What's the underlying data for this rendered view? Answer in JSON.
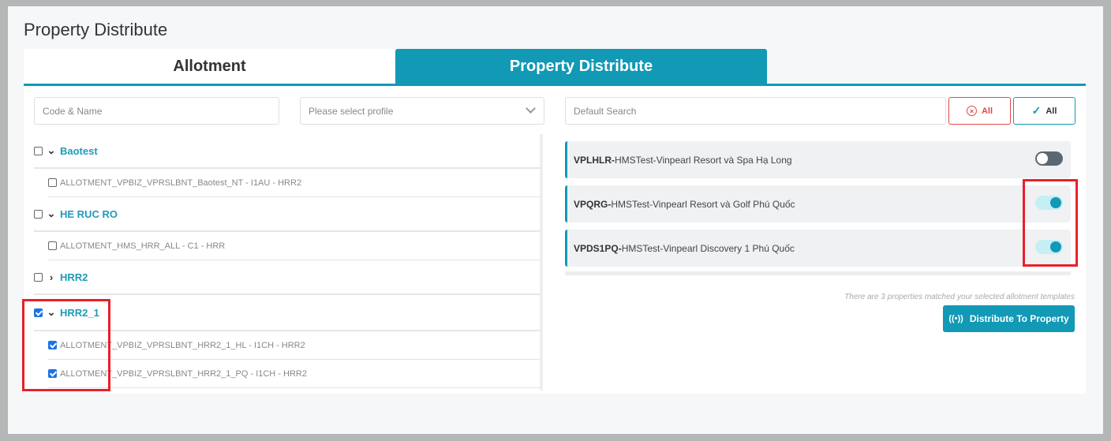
{
  "page_title": "Property Distribute",
  "tabs": [
    {
      "label": "Allotment",
      "active": false
    },
    {
      "label": "Property Distribute",
      "active": true
    }
  ],
  "left": {
    "code_placeholder": "Code & Name",
    "profile_placeholder": "Please select profile",
    "groups": [
      {
        "name": "Baotest",
        "checked": false,
        "expanded": true,
        "items": [
          {
            "label": "ALLOTMENT_VPBIZ_VPRSLBNT_Baotest_NT - I1AU - HRR2",
            "checked": false
          }
        ]
      },
      {
        "name": "HE RUC RO",
        "checked": false,
        "expanded": true,
        "items": [
          {
            "label": "ALLOTMENT_HMS_HRR_ALL - C1 - HRR",
            "checked": false
          }
        ]
      },
      {
        "name": "HRR2",
        "checked": false,
        "expanded": false,
        "items": []
      },
      {
        "name": "HRR2_1",
        "checked": true,
        "expanded": true,
        "items": [
          {
            "label": "ALLOTMENT_VPBIZ_VPRSLBNT_HRR2_1_HL - I1CH - HRR2",
            "checked": true
          },
          {
            "label": "ALLOTMENT_VPBIZ_VPRSLBNT_HRR2_1_PQ - I1CH - HRR2",
            "checked": true
          }
        ]
      }
    ]
  },
  "right": {
    "search_placeholder": "Default Search",
    "deselect_all_label": "All",
    "select_all_label": "All",
    "properties": [
      {
        "code": "VPLHLR-",
        "name": " HMSTest-Vinpearl Resort và Spa Hạ Long",
        "enabled": false
      },
      {
        "code": "VPQRG-",
        "name": " HMSTest-Vinpearl Resort và Golf Phú Quốc",
        "enabled": true
      },
      {
        "code": "VPDS1PQ-",
        "name": " HMSTest-Vinpearl Discovery 1 Phú Quốc",
        "enabled": true
      }
    ],
    "match_note": "There are 3 properties matched your selected allotment templates",
    "distribute_label": "Distribute To Property"
  },
  "colors": {
    "accent": "#1199b5",
    "highlight": "#e8202a",
    "danger": "#e04848"
  }
}
